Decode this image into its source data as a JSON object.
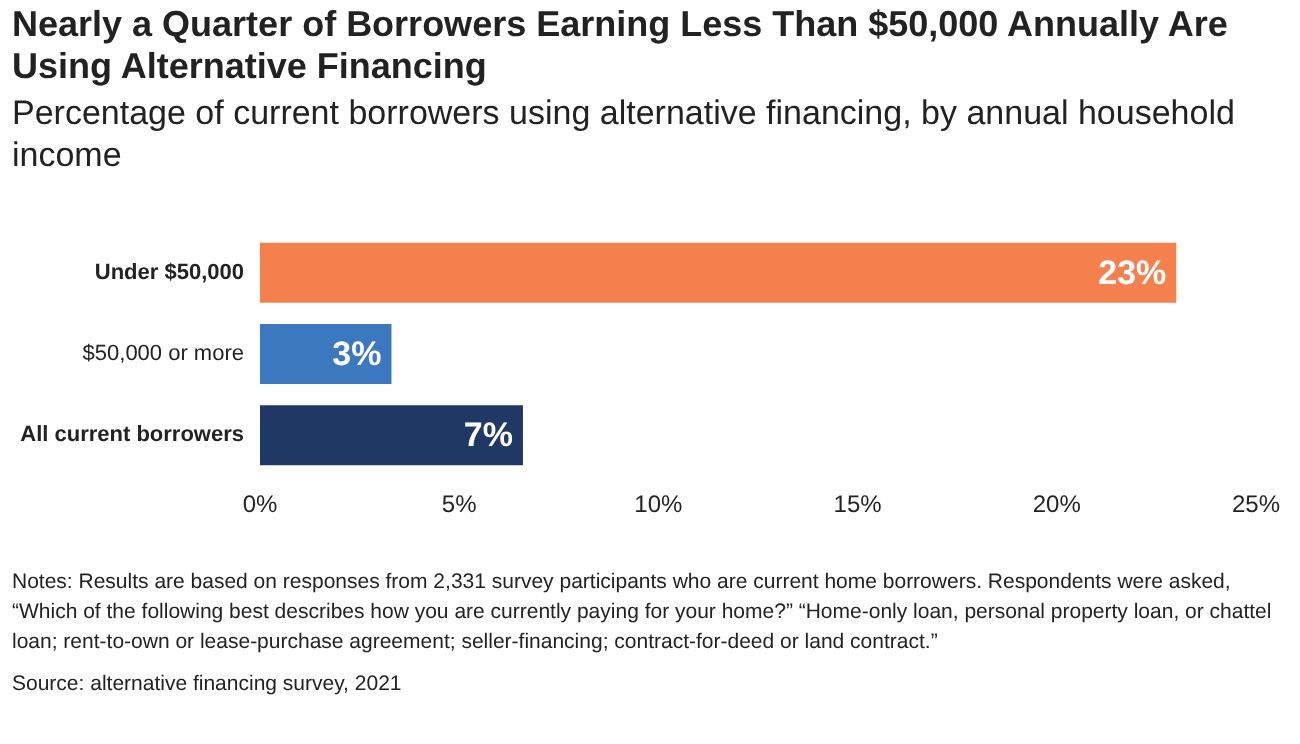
{
  "chart_data": {
    "type": "bar",
    "orientation": "horizontal",
    "title": "Nearly a Quarter of Borrowers Earning Less Than $50,000 Annually Are Using Alternative Financing",
    "subtitle": "Percentage of current borrowers using alternative financing, by annual household income",
    "categories": [
      "Under $50,000",
      "$50,000 or more",
      "All current borrowers"
    ],
    "values": [
      23,
      3.3,
      6.6
    ],
    "colors": [
      "#f4804e",
      "#3b78bf",
      "#1f3864"
    ],
    "value_labels": [
      "23%",
      "3%",
      "7%"
    ],
    "xlim": [
      0,
      25
    ],
    "xticks": [
      {
        "value": 0,
        "label": "0%"
      },
      {
        "value": 5,
        "label": "5%"
      },
      {
        "value": 10,
        "label": "10%"
      },
      {
        "value": 15,
        "label": "15%"
      },
      {
        "value": 20,
        "label": "20%"
      },
      {
        "value": 25,
        "label": "25%"
      }
    ],
    "grid": false,
    "annotations": [
      "Notes: Results are based on responses from 2,331 survey participants who are current home borrowers. Respondents were asked, “Which of the following best describes how you are currently paying for your home?” “Home-only loan, personal property loan, or chattel loan; rent-to-own or lease-purchase agreement; seller-financing; contract-for-deed or land contract.”",
      "Source: alternative financing survey, 2021"
    ]
  }
}
